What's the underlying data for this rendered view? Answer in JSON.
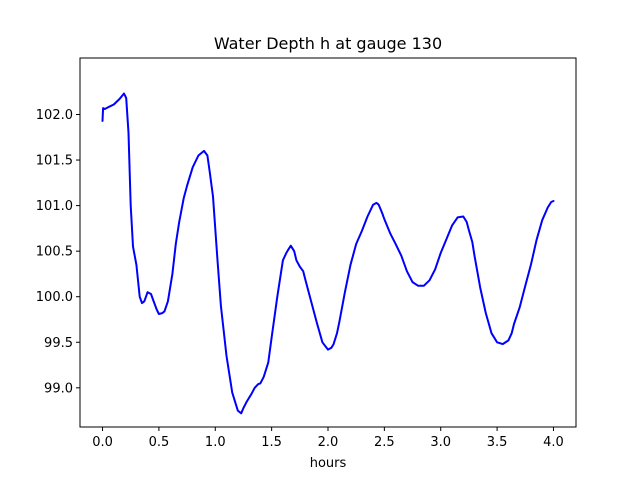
{
  "chart_data": {
    "type": "line",
    "title": "Water Depth h at gauge 130",
    "xlabel": "hours",
    "ylabel": "",
    "xlim": [
      -0.2,
      4.2
    ],
    "ylim": [
      98.57,
      102.62
    ],
    "xticks": [
      0.0,
      0.5,
      1.0,
      1.5,
      2.0,
      2.5,
      3.0,
      3.5,
      4.0
    ],
    "xtick_labels": [
      "0.0",
      "0.5",
      "1.0",
      "1.5",
      "2.0",
      "2.5",
      "3.0",
      "3.5",
      "4.0"
    ],
    "yticks": [
      99.0,
      99.5,
      100.0,
      100.5,
      101.0,
      101.5,
      102.0
    ],
    "ytick_labels": [
      "99.0",
      "99.5",
      "100.0",
      "100.5",
      "101.0",
      "101.5",
      "102.0"
    ],
    "grid": false,
    "legend": "none",
    "series": [
      {
        "color": "#0000ff",
        "x": [
          0.0,
          0.005,
          0.02,
          0.05,
          0.1,
          0.15,
          0.19,
          0.21,
          0.23,
          0.25,
          0.27,
          0.3,
          0.33,
          0.35,
          0.37,
          0.4,
          0.43,
          0.45,
          0.48,
          0.5,
          0.53,
          0.55,
          0.58,
          0.62,
          0.65,
          0.68,
          0.72,
          0.75,
          0.8,
          0.85,
          0.9,
          0.93,
          0.95,
          0.98,
          1.02,
          1.05,
          1.1,
          1.15,
          1.2,
          1.23,
          1.25,
          1.28,
          1.32,
          1.35,
          1.38,
          1.4,
          1.43,
          1.47,
          1.5,
          1.55,
          1.6,
          1.63,
          1.65,
          1.67,
          1.7,
          1.72,
          1.75,
          1.78,
          1.8,
          1.85,
          1.9,
          1.95,
          2.0,
          2.03,
          2.05,
          2.08,
          2.1,
          2.15,
          2.2,
          2.25,
          2.3,
          2.35,
          2.4,
          2.43,
          2.45,
          2.48,
          2.5,
          2.55,
          2.6,
          2.65,
          2.7,
          2.75,
          2.8,
          2.85,
          2.9,
          2.95,
          3.0,
          3.05,
          3.1,
          3.15,
          3.2,
          3.23,
          3.25,
          3.28,
          3.3,
          3.35,
          3.4,
          3.45,
          3.5,
          3.55,
          3.6,
          3.63,
          3.65,
          3.7,
          3.75,
          3.8,
          3.85,
          3.9,
          3.95,
          3.98,
          4.0
        ],
        "y": [
          101.93,
          102.07,
          102.06,
          102.08,
          102.11,
          102.17,
          102.23,
          102.18,
          101.8,
          101.0,
          100.55,
          100.35,
          100.0,
          99.93,
          99.95,
          100.05,
          100.03,
          99.96,
          99.86,
          99.81,
          99.82,
          99.84,
          99.95,
          100.25,
          100.58,
          100.82,
          101.08,
          101.22,
          101.42,
          101.55,
          101.6,
          101.55,
          101.38,
          101.1,
          100.4,
          99.9,
          99.35,
          98.95,
          98.75,
          98.72,
          98.78,
          98.85,
          98.93,
          99.0,
          99.04,
          99.05,
          99.12,
          99.28,
          99.55,
          100.0,
          100.4,
          100.48,
          100.52,
          100.56,
          100.5,
          100.4,
          100.33,
          100.28,
          100.18,
          99.95,
          99.72,
          99.5,
          99.42,
          99.44,
          99.48,
          99.6,
          99.72,
          100.05,
          100.35,
          100.58,
          100.72,
          100.88,
          101.01,
          101.03,
          101.01,
          100.92,
          100.85,
          100.7,
          100.58,
          100.45,
          100.28,
          100.16,
          100.12,
          100.12,
          100.18,
          100.3,
          100.48,
          100.63,
          100.78,
          100.87,
          100.88,
          100.82,
          100.73,
          100.6,
          100.45,
          100.1,
          99.82,
          99.6,
          99.5,
          99.48,
          99.52,
          99.6,
          99.7,
          99.88,
          100.12,
          100.35,
          100.62,
          100.84,
          100.98,
          101.04,
          101.05
        ]
      }
    ]
  }
}
